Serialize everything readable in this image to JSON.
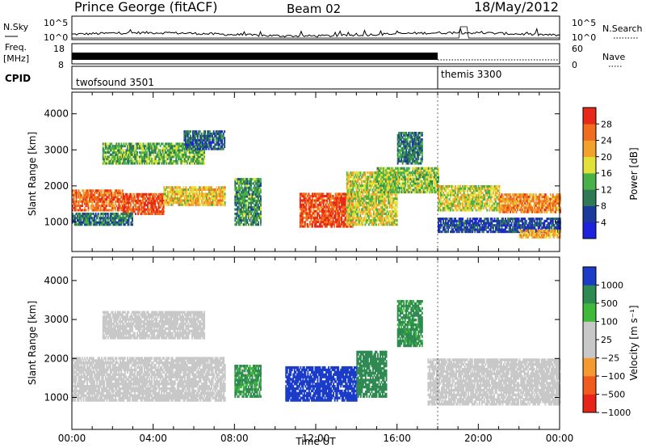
{
  "header": {
    "station": "Prince George (fitACF)",
    "beam": "Beam 02",
    "date": "18/May/2012"
  },
  "sky_panel": {
    "left_label": "N.Sky",
    "right_label": "N.Search",
    "left_ticks": [
      "10^5",
      "10^0"
    ],
    "right_ticks": [
      "10^5",
      "10^0"
    ]
  },
  "freq_panel": {
    "left_label_line1": "Freq.",
    "left_label_line2": "[MHz]",
    "left_ticks": [
      "18",
      "8"
    ],
    "right_label": "Nave",
    "right_ticks": [
      "60",
      "0"
    ]
  },
  "cpid_panel": {
    "label": "CPID",
    "modes": [
      {
        "name": "twofsound 3501",
        "start_hour": 0
      },
      {
        "name": "themis 3300",
        "start_hour": 18
      }
    ]
  },
  "colors": {
    "power_scale": [
      "#1e22dc",
      "#1c3a9e",
      "#2f7a55",
      "#48b248",
      "#e1e13a",
      "#f2a12a",
      "#f06c1e",
      "#e82818"
    ],
    "velocity_scale": [
      "#e8241a",
      "#f05a1e",
      "#f49a30",
      "#c8c8c8",
      "#c8c8c8",
      "#3fb93a",
      "#2f8a52",
      "#1a3cc8"
    ]
  },
  "chart_data": [
    {
      "type": "heatmap",
      "name": "power",
      "xlabel": "",
      "ylabel": "Slant Range [km]",
      "xlim": [
        0,
        24
      ],
      "ylim": [
        180,
        4600
      ],
      "yticks": [
        "4000",
        "3000",
        "2000",
        "1000"
      ],
      "colorbar": {
        "label": "Power [dB]",
        "ticks": [
          "28",
          "24",
          "20",
          "16",
          "12",
          "8",
          "4"
        ],
        "range": [
          0,
          32
        ]
      },
      "echo_bands": [
        {
          "t0": 0.0,
          "t1": 2.5,
          "r0": 1300,
          "r1": 1900,
          "level": 26
        },
        {
          "t0": 2.5,
          "t1": 4.5,
          "r0": 1200,
          "r1": 1750,
          "level": 28
        },
        {
          "t0": 4.5,
          "t1": 7.5,
          "r0": 1450,
          "r1": 1950,
          "level": 20
        },
        {
          "t0": 0.0,
          "t1": 3.0,
          "r0": 900,
          "r1": 1250,
          "level": 10
        },
        {
          "t0": 1.5,
          "t1": 6.5,
          "r0": 2600,
          "r1": 3200,
          "level": 14
        },
        {
          "t0": 5.5,
          "t1": 7.5,
          "r0": 3000,
          "r1": 3500,
          "level": 8
        },
        {
          "t0": 8.0,
          "t1": 9.3,
          "r0": 900,
          "r1": 2200,
          "level": 12
        },
        {
          "t0": 11.2,
          "t1": 13.8,
          "r0": 850,
          "r1": 1800,
          "level": 28
        },
        {
          "t0": 13.5,
          "t1": 16.0,
          "r0": 900,
          "r1": 2400,
          "level": 18
        },
        {
          "t0": 15.0,
          "t1": 18.0,
          "r0": 1800,
          "r1": 2500,
          "level": 16
        },
        {
          "t0": 16.0,
          "t1": 17.2,
          "r0": 2600,
          "r1": 3500,
          "level": 10
        },
        {
          "t0": 18.0,
          "t1": 21.0,
          "r0": 1300,
          "r1": 2000,
          "level": 18
        },
        {
          "t0": 21.0,
          "t1": 24.0,
          "r0": 1250,
          "r1": 1750,
          "level": 24
        },
        {
          "t0": 18.0,
          "t1": 24.0,
          "r0": 700,
          "r1": 1100,
          "level": 6
        },
        {
          "t0": 22.0,
          "t1": 24.0,
          "r0": 550,
          "r1": 750,
          "level": 22
        }
      ]
    },
    {
      "type": "heatmap",
      "name": "velocity",
      "xlabel": "Time UT",
      "ylabel": "Slant Range [km]",
      "xlim": [
        0,
        24
      ],
      "ylim": [
        180,
        4600
      ],
      "xticks": [
        "00:00",
        "04:00",
        "08:00",
        "12:00",
        "16:00",
        "20:00",
        "00:00"
      ],
      "yticks": [
        "4000",
        "3000",
        "2000",
        "1000"
      ],
      "colorbar": {
        "label": "Velocity [m s⁻¹]",
        "ticks": [
          "1000",
          "500",
          "100",
          "25",
          "−25",
          "−100",
          "−500",
          "−1000"
        ]
      },
      "echo_bands": [
        {
          "t0": 0.0,
          "t1": 7.5,
          "r0": 900,
          "r1": 2000,
          "vel": 0
        },
        {
          "t0": 1.5,
          "t1": 6.5,
          "r0": 2500,
          "r1": 3200,
          "vel": 0
        },
        {
          "t0": 8.0,
          "t1": 9.3,
          "r0": 1000,
          "r1": 1800,
          "vel": 150
        },
        {
          "t0": 10.5,
          "t1": 14.0,
          "r0": 900,
          "r1": 1800,
          "vel": 1000
        },
        {
          "t0": 14.0,
          "t1": 15.5,
          "r0": 1000,
          "r1": 2200,
          "vel": 300
        },
        {
          "t0": 16.0,
          "t1": 17.2,
          "r0": 2300,
          "r1": 3500,
          "vel": 200
        },
        {
          "t0": 17.5,
          "t1": 24.0,
          "r0": 800,
          "r1": 2000,
          "vel": 0
        }
      ]
    }
  ]
}
